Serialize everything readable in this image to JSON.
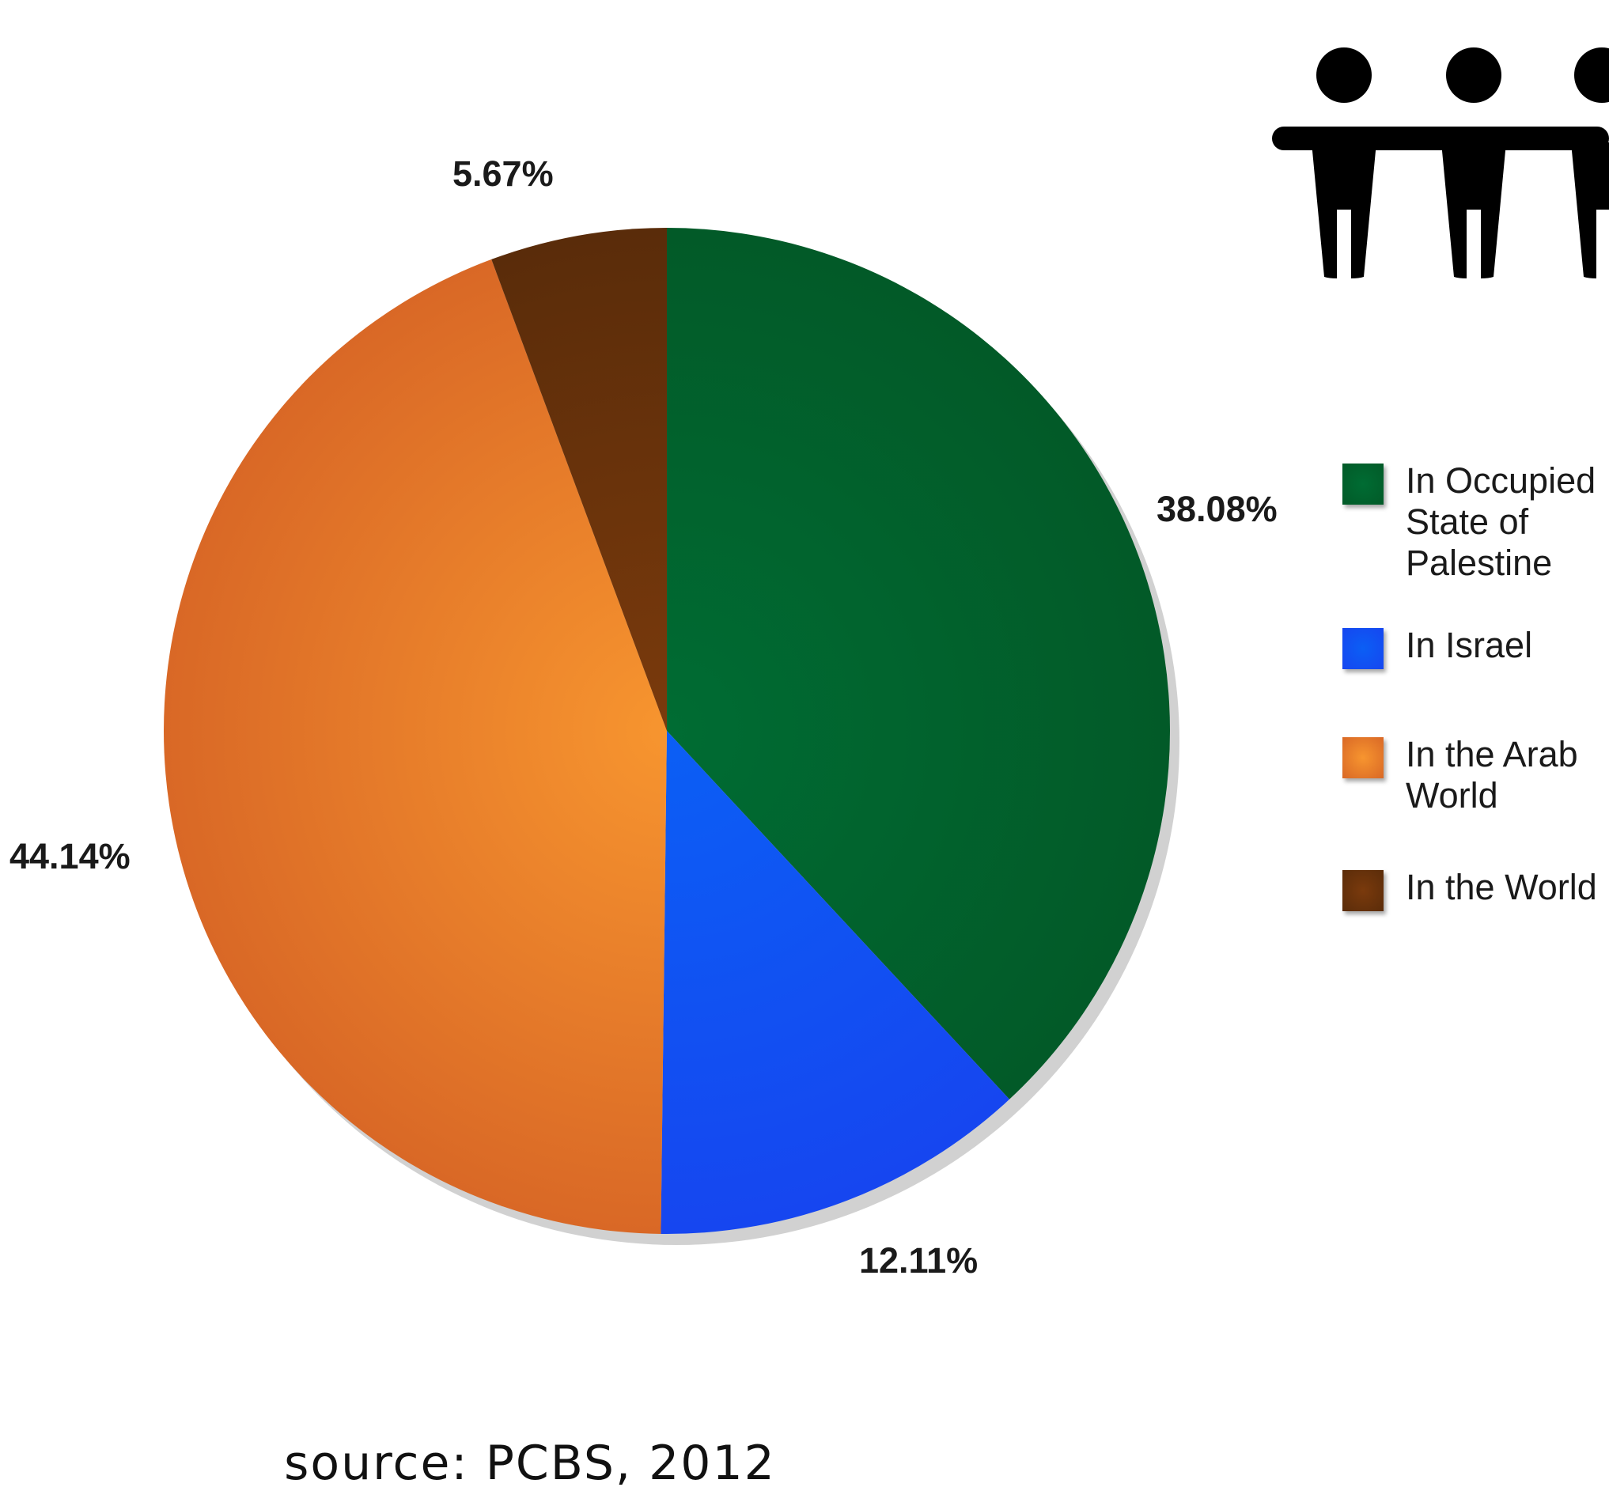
{
  "chart_data": {
    "type": "pie",
    "title": "",
    "slices": [
      {
        "label": "In Occupied State of Palestine",
        "value": 38.08,
        "display": "38.08%",
        "color": "#006c33",
        "color_edge": "#025a28"
      },
      {
        "label": "In Israel",
        "value": 12.11,
        "display": "12.11%",
        "color": "#0b5ff5",
        "color_edge": "#1646f0"
      },
      {
        "label": "In the Arab World",
        "value": 44.14,
        "display": "44.14%",
        "color": "#f7952f",
        "color_edge": "#d96826"
      },
      {
        "label": "In the World",
        "value": 5.67,
        "display": "5.67%",
        "color": "#7a3a0c",
        "color_edge": "#5a2c0a"
      }
    ],
    "start_angle": "12 o'clock, clockwise",
    "legend_placement": "right"
  },
  "source": "source: PCBS, 2012",
  "icons": {
    "people": "people-holding-hands-icon"
  }
}
